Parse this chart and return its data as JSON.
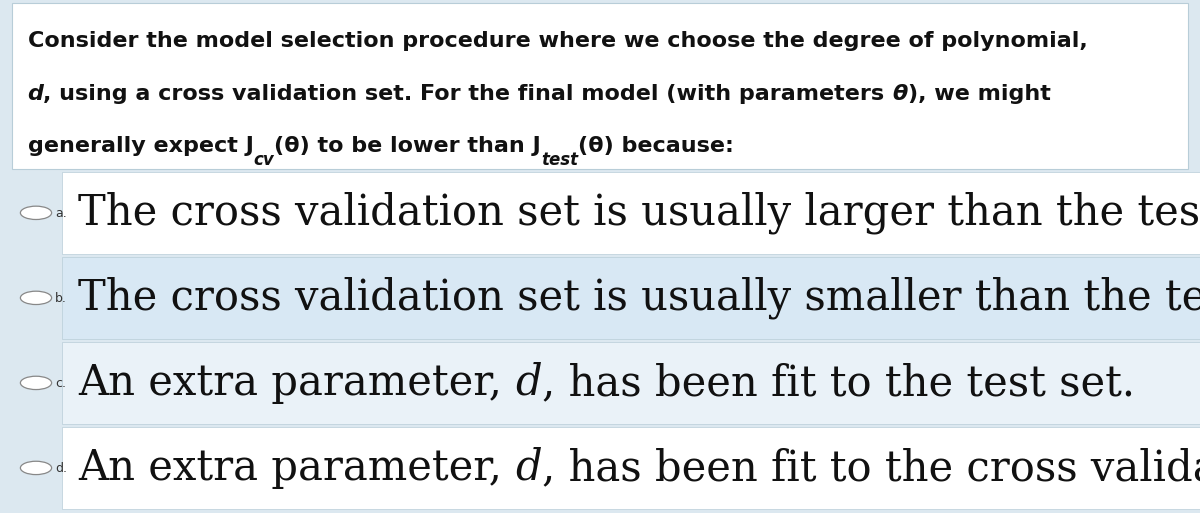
{
  "bg_color": "#dce8f0",
  "question_bg": "#ffffff",
  "option_bgs": [
    "#dce8f0",
    "#dce8f0",
    "#dce8f0",
    "#dce8f0"
  ],
  "inner_bgs": [
    "#ffffff",
    "#d8e8f4",
    "#eaf2f8",
    "#ffffff"
  ],
  "border_color": "#b0c8d8",
  "text_color": "#111111",
  "q_line1": "Consider the model selection procedure where we choose the degree of polynomial,",
  "q_line2_parts": [
    "d",
    ", using a cross validation set. For the final model (with parameters ",
    "θ",
    "), we might"
  ],
  "q_line3_parts": [
    "generally expect J",
    "cv",
    "(θ) to be lower than J",
    "test",
    "(θ) because:"
  ],
  "options": [
    {
      "label": "a.",
      "parts": [
        "The cross validation set is usually larger than the test set."
      ],
      "italic_d": false
    },
    {
      "label": "b.",
      "parts": [
        "The cross validation set is usually smaller than the test set."
      ],
      "italic_d": false
    },
    {
      "label": "c.",
      "parts": [
        "An extra parameter, ",
        "d",
        ", has been fit to the test set."
      ],
      "italic_d": true
    },
    {
      "label": "d.",
      "parts": [
        "An extra parameter, ",
        "d",
        ", has been fit to the cross validation set."
      ],
      "italic_d": true
    }
  ],
  "q_fontsize": 16,
  "opt_fontsize": 30,
  "opt_label_fontsize": 9,
  "fig_width": 12.0,
  "fig_height": 5.13,
  "dpi": 100
}
